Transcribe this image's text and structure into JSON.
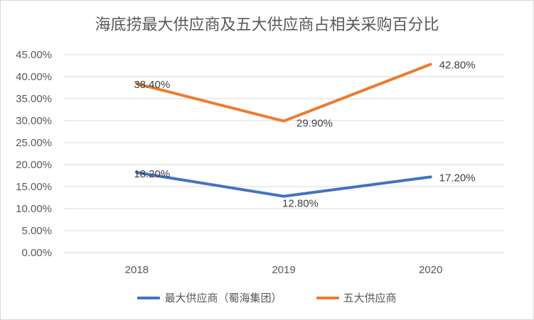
{
  "chart_data": {
    "type": "line",
    "title": "海底捞最大供应商及五大供应商占相关采购百分比",
    "categories": [
      "2018",
      "2019",
      "2020"
    ],
    "ylim": [
      0,
      45
    ],
    "yticks": [
      0,
      5,
      10,
      15,
      20,
      25,
      30,
      35,
      40,
      45
    ],
    "ytick_labels": [
      "0.00%",
      "5.00%",
      "10.00%",
      "15.00%",
      "20.00%",
      "25.00%",
      "30.00%",
      "35.00%",
      "40.00%",
      "45.00%"
    ],
    "xlabel": "",
    "ylabel": "",
    "grid": true,
    "legend_position": "bottom",
    "series": [
      {
        "name": "最大供应商（蜀海集团）",
        "color": "#4472C4",
        "values": [
          18.2,
          12.8,
          17.2
        ],
        "labels": [
          "18.20%",
          "12.80%",
          "17.20%"
        ]
      },
      {
        "name": "五大供应商",
        "color": "#ED7D31",
        "values": [
          38.4,
          29.9,
          42.8
        ],
        "labels": [
          "38.40%",
          "29.90%",
          "42.80%"
        ]
      }
    ]
  }
}
